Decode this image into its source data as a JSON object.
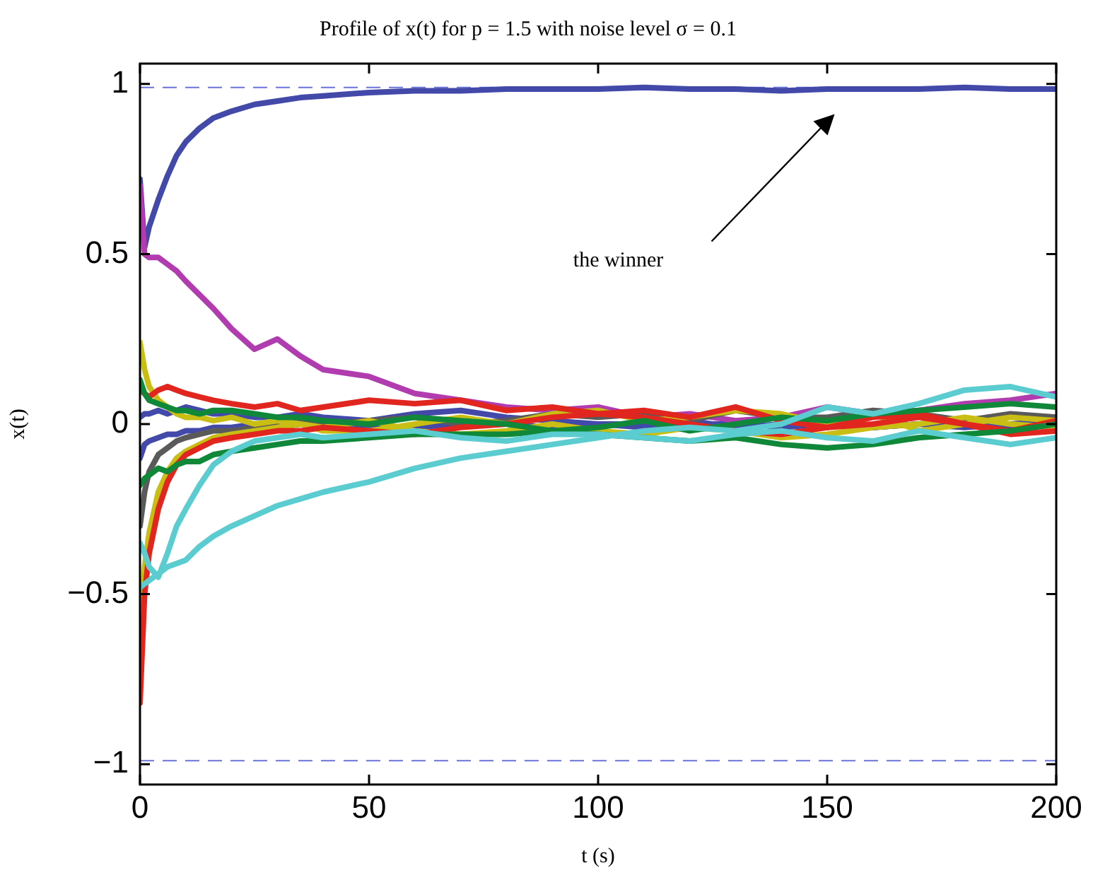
{
  "chart_data": {
    "type": "line",
    "title": "Profile of x(t) for p = 1.5 with noise level σ = 0.1",
    "xlabel": "t (s)",
    "ylabel": "x(t)",
    "x": [
      0,
      1,
      2,
      4,
      6,
      8,
      10,
      13,
      16,
      20,
      25,
      30,
      35,
      40,
      50,
      60,
      70,
      80,
      90,
      100,
      110,
      120,
      130,
      140,
      150,
      160,
      170,
      180,
      190,
      200
    ],
    "series": [
      {
        "color": "#5bcdd0",
        "values": [
          -0.48,
          -0.47,
          -0.46,
          -0.44,
          -0.42,
          -0.41,
          -0.4,
          -0.36,
          -0.33,
          -0.3,
          -0.27,
          -0.24,
          -0.22,
          -0.2,
          -0.17,
          -0.13,
          -0.1,
          -0.08,
          -0.06,
          -0.04,
          -0.02,
          -0.01,
          -0.02,
          0,
          0.05,
          0.03,
          0.06,
          0.1,
          0.11,
          0.08
        ]
      },
      {
        "color": "#5bcdd0",
        "values": [
          -0.35,
          -0.38,
          -0.42,
          -0.45,
          -0.38,
          -0.3,
          -0.25,
          -0.18,
          -0.12,
          -0.08,
          -0.05,
          -0.04,
          -0.03,
          -0.04,
          -0.03,
          -0.02,
          -0.04,
          -0.05,
          -0.03,
          -0.03,
          -0.04,
          -0.05,
          -0.03,
          -0.02,
          -0.04,
          -0.05,
          -0.02,
          -0.04,
          -0.06,
          -0.04
        ]
      },
      {
        "color": "#10883a",
        "values": [
          -0.18,
          -0.16,
          -0.15,
          -0.13,
          -0.14,
          -0.12,
          -0.11,
          -0.11,
          -0.09,
          -0.08,
          -0.07,
          -0.06,
          -0.05,
          -0.05,
          -0.04,
          -0.03,
          -0.03,
          -0.03,
          -0.02,
          -0.03,
          -0.04,
          -0.05,
          -0.04,
          -0.06,
          -0.07,
          -0.06,
          -0.04,
          -0.03,
          -0.02,
          0
        ]
      },
      {
        "color": "#10883a",
        "values": [
          0.13,
          0.09,
          0.07,
          0.06,
          0.05,
          0.04,
          0.04,
          0.03,
          0.04,
          0.04,
          0.03,
          0.02,
          0.02,
          0.01,
          0,
          0.02,
          0.01,
          0,
          -0.02,
          -0.01,
          0.01,
          -0.02,
          0,
          0.02,
          0.01,
          0.03,
          0.04,
          0.05,
          0.06,
          0.05
        ]
      },
      {
        "color": "#e0261e",
        "values": [
          0.1,
          0.09,
          0.08,
          0.1,
          0.11,
          0.1,
          0.09,
          0.08,
          0.07,
          0.06,
          0.05,
          0.06,
          0.04,
          0.05,
          0.07,
          0.06,
          0.07,
          0.04,
          0.05,
          0.03,
          0.02,
          0,
          -0.02,
          -0.03,
          -0.01,
          0,
          0.02,
          0,
          -0.03,
          -0.02
        ]
      },
      {
        "color": "#e0261e",
        "values": [
          -0.82,
          -0.5,
          -0.38,
          -0.25,
          -0.17,
          -0.12,
          -0.09,
          -0.07,
          -0.05,
          -0.04,
          -0.03,
          -0.02,
          -0.02,
          -0.01,
          -0.02,
          -0.03,
          -0.01,
          0,
          0.02,
          0.03,
          0.04,
          0.02,
          0.05,
          0.01,
          -0.01,
          0.02,
          0.03,
          0,
          -0.02,
          0.01
        ]
      },
      {
        "color": "#c8be14",
        "values": [
          0.24,
          0.16,
          0.11,
          0.07,
          0.05,
          0.03,
          0.02,
          0.02,
          0.01,
          0.02,
          0,
          0.01,
          0,
          -0.02,
          -0.02,
          0,
          0.02,
          0,
          0.03,
          0.04,
          0.01,
          0.02,
          0.04,
          0.03,
          0,
          0.03,
          -0.02,
          0,
          0.02,
          0.01
        ]
      },
      {
        "color": "#c8be14",
        "values": [
          -0.6,
          -0.42,
          -0.32,
          -0.2,
          -0.14,
          -0.1,
          -0.08,
          -0.06,
          -0.04,
          -0.03,
          -0.02,
          -0.01,
          0,
          -0.01,
          0.01,
          -0.02,
          -0.03,
          -0.02,
          0,
          -0.02,
          -0.03,
          -0.01,
          -0.02,
          -0.04,
          -0.03,
          -0.01,
          0,
          0.02,
          0,
          -0.01
        ]
      },
      {
        "color": "#5a5a5a",
        "values": [
          -0.3,
          -0.2,
          -0.14,
          -0.09,
          -0.07,
          -0.05,
          -0.04,
          -0.03,
          -0.02,
          -0.02,
          -0.01,
          0,
          0.01,
          0,
          0.01,
          0.02,
          0,
          0.01,
          0.03,
          0.02,
          0.03,
          0.01,
          0.04,
          0.02,
          0.02,
          0.04,
          0.03,
          0.01,
          0.03,
          0.02
        ]
      },
      {
        "color": "#b03cb0",
        "values": [
          0.7,
          0.5,
          0.49,
          0.49,
          0.47,
          0.45,
          0.42,
          0.38,
          0.34,
          0.28,
          0.22,
          0.25,
          0.2,
          0.16,
          0.14,
          0.09,
          0.07,
          0.05,
          0.04,
          0.05,
          0.02,
          0.03,
          0.01,
          0.02,
          0.05,
          0.03,
          0.04,
          0.06,
          0.07,
          0.09
        ]
      },
      {
        "color": "#4249a8",
        "values": [
          0.02,
          0.03,
          0.03,
          0.04,
          0.03,
          0.04,
          0.05,
          0.04,
          0.03,
          0.03,
          0.02,
          0.02,
          0.03,
          0.02,
          0.01,
          0.03,
          0.04,
          0.02,
          0.01,
          0,
          0,
          0.01,
          -0.01,
          0,
          0.01,
          -0.01,
          0,
          -0.01,
          0,
          0.01
        ]
      },
      {
        "color": "#4249a8",
        "values": [
          -0.1,
          -0.06,
          -0.05,
          -0.04,
          -0.03,
          -0.03,
          -0.02,
          -0.02,
          -0.01,
          -0.01,
          0,
          -0.01,
          0,
          0,
          -0.01,
          -0.01,
          0,
          0,
          -0.01,
          0,
          -0.01,
          0,
          0,
          -0.01,
          0,
          -0.01,
          0,
          0,
          -0.01,
          0
        ]
      },
      {
        "color": "#4249a8",
        "values": [
          0.72,
          0.52,
          0.58,
          0.66,
          0.73,
          0.79,
          0.83,
          0.87,
          0.9,
          0.92,
          0.94,
          0.95,
          0.96,
          0.965,
          0.975,
          0.98,
          0.98,
          0.985,
          0.985,
          0.985,
          0.99,
          0.985,
          0.985,
          0.98,
          0.985,
          0.985,
          0.985,
          0.99,
          0.985,
          0.985
        ]
      }
    ],
    "xlim": [
      0,
      200
    ],
    "xticks": [
      0,
      50,
      100,
      150,
      200
    ],
    "ylim": [
      -1.06,
      1.06
    ],
    "yticks": [
      {
        "value": -1,
        "label": "−1"
      },
      {
        "value": -0.5,
        "label": "−0.5"
      },
      0,
      0.5,
      1
    ],
    "ref_lines": [
      {
        "axis": "y",
        "value": 0.99,
        "color": "#6a74d8",
        "line_style": "dashed"
      },
      {
        "axis": "y",
        "value": -0.99,
        "color": "#6a74d8",
        "line_style": "dashed"
      }
    ],
    "annotations": [
      "the winner"
    ],
    "grid": false,
    "legend": false,
    "marker": "none",
    "line_style": "solid"
  }
}
